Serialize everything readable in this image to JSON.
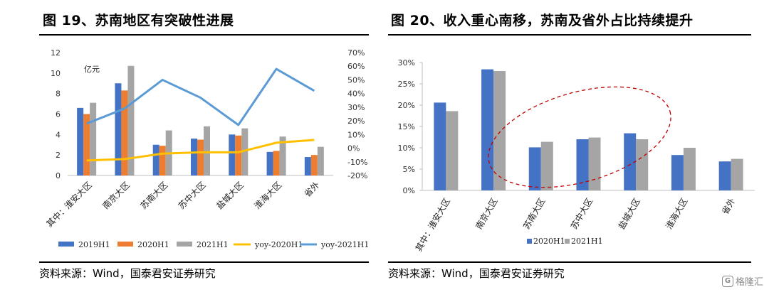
{
  "figures": [
    {
      "title": "图 19、苏南地区有突破性进展",
      "source": "资料来源：Wind，国泰君安证券研究"
    },
    {
      "title": "图 20、收入重心南移，苏南及省外占比持续提升",
      "source": "资料来源：Wind，国泰君安证券研究"
    }
  ],
  "watermark": {
    "text": "格隆汇",
    "logo": "G"
  },
  "chart_data": [
    {
      "type": "bar",
      "categories": [
        "其中：淮安大区",
        "南京大区",
        "苏南大区",
        "苏中大区",
        "盐城大区",
        "淮海大区",
        "省外"
      ],
      "unit_label": "亿元",
      "series": [
        {
          "name": "2019H1",
          "type": "bar",
          "axis": "left",
          "color": "#4472C4",
          "values": [
            6.6,
            9.0,
            3.0,
            3.6,
            4.0,
            2.3,
            1.8
          ]
        },
        {
          "name": "2020H1",
          "type": "bar",
          "axis": "left",
          "color": "#ED7D31",
          "values": [
            6.0,
            8.3,
            2.9,
            3.5,
            3.9,
            2.4,
            2.0
          ]
        },
        {
          "name": "2021H1",
          "type": "bar",
          "axis": "left",
          "color": "#A5A5A5",
          "values": [
            7.1,
            10.7,
            4.4,
            4.8,
            4.6,
            3.8,
            2.8
          ]
        },
        {
          "name": "yoy-2020H1",
          "type": "line",
          "axis": "right",
          "color": "#FFC000",
          "values": [
            -9,
            -8,
            -4,
            -3,
            -3,
            4,
            6
          ]
        },
        {
          "name": "yoy-2021H1",
          "type": "line",
          "axis": "right",
          "color": "#5B9BD5",
          "values": [
            18,
            29,
            50,
            37,
            17,
            58,
            42
          ]
        }
      ],
      "left_axis": {
        "min": 0,
        "max": 12,
        "ticks": [
          0,
          2,
          4,
          6,
          8,
          10,
          12
        ]
      },
      "right_axis": {
        "min": -20,
        "max": 70,
        "ticks": [
          "-20%",
          "-10%",
          "0%",
          "10%",
          "20%",
          "30%",
          "40%",
          "50%",
          "60%",
          "70%"
        ]
      },
      "legend": "bottom"
    },
    {
      "type": "bar",
      "categories": [
        "其中：淮安大区",
        "南京大区",
        "苏南大区",
        "苏中大区",
        "盐城大区",
        "淮海大区",
        "省外"
      ],
      "series": [
        {
          "name": "2020H1",
          "color": "#4472C4",
          "values": [
            20.6,
            28.4,
            10.1,
            12.0,
            13.4,
            8.3,
            6.8
          ]
        },
        {
          "name": "2021H1",
          "color": "#A5A5A5",
          "values": [
            18.6,
            28.0,
            11.4,
            12.4,
            12.0,
            10.0,
            7.4
          ]
        }
      ],
      "y_axis": {
        "min": 0,
        "max": 30,
        "ticks": [
          "0%",
          "5%",
          "10%",
          "15%",
          "20%",
          "25%",
          "30%"
        ]
      },
      "annotation": "dashed-ellipse",
      "annotation_color": "#C00000",
      "legend": "bottom"
    }
  ]
}
